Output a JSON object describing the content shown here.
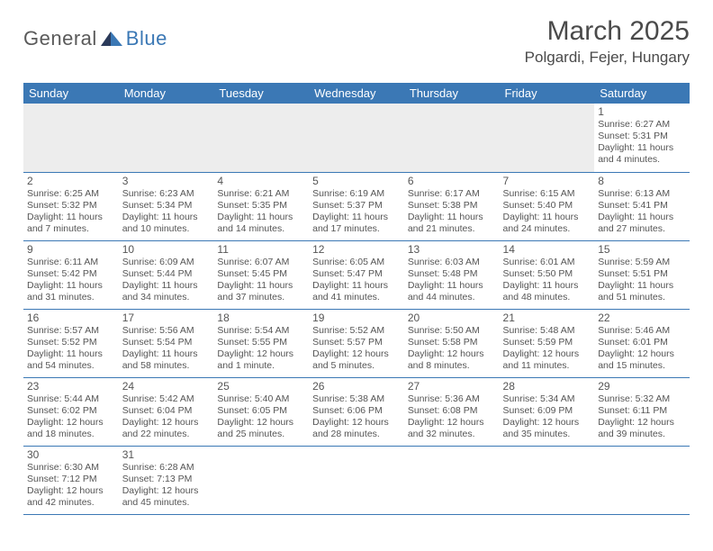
{
  "brand": {
    "part1": "General",
    "part2": "Blue"
  },
  "title": "March 2025",
  "location": "Polgardi, Fejer, Hungary",
  "colors": {
    "header_bg": "#3b78b5",
    "header_fg": "#ffffff",
    "grid_border": "#3b78b5",
    "empty_bg": "#ededed",
    "text": "#555555",
    "title_text": "#4a4a4a"
  },
  "weekdays": [
    "Sunday",
    "Monday",
    "Tuesday",
    "Wednesday",
    "Thursday",
    "Friday",
    "Saturday"
  ],
  "weeks": [
    [
      null,
      null,
      null,
      null,
      null,
      null,
      {
        "n": "1",
        "sr": "6:27 AM",
        "ss": "5:31 PM",
        "dl": "11 hours and 4 minutes."
      }
    ],
    [
      {
        "n": "2",
        "sr": "6:25 AM",
        "ss": "5:32 PM",
        "dl": "11 hours and 7 minutes."
      },
      {
        "n": "3",
        "sr": "6:23 AM",
        "ss": "5:34 PM",
        "dl": "11 hours and 10 minutes."
      },
      {
        "n": "4",
        "sr": "6:21 AM",
        "ss": "5:35 PM",
        "dl": "11 hours and 14 minutes."
      },
      {
        "n": "5",
        "sr": "6:19 AM",
        "ss": "5:37 PM",
        "dl": "11 hours and 17 minutes."
      },
      {
        "n": "6",
        "sr": "6:17 AM",
        "ss": "5:38 PM",
        "dl": "11 hours and 21 minutes."
      },
      {
        "n": "7",
        "sr": "6:15 AM",
        "ss": "5:40 PM",
        "dl": "11 hours and 24 minutes."
      },
      {
        "n": "8",
        "sr": "6:13 AM",
        "ss": "5:41 PM",
        "dl": "11 hours and 27 minutes."
      }
    ],
    [
      {
        "n": "9",
        "sr": "6:11 AM",
        "ss": "5:42 PM",
        "dl": "11 hours and 31 minutes."
      },
      {
        "n": "10",
        "sr": "6:09 AM",
        "ss": "5:44 PM",
        "dl": "11 hours and 34 minutes."
      },
      {
        "n": "11",
        "sr": "6:07 AM",
        "ss": "5:45 PM",
        "dl": "11 hours and 37 minutes."
      },
      {
        "n": "12",
        "sr": "6:05 AM",
        "ss": "5:47 PM",
        "dl": "11 hours and 41 minutes."
      },
      {
        "n": "13",
        "sr": "6:03 AM",
        "ss": "5:48 PM",
        "dl": "11 hours and 44 minutes."
      },
      {
        "n": "14",
        "sr": "6:01 AM",
        "ss": "5:50 PM",
        "dl": "11 hours and 48 minutes."
      },
      {
        "n": "15",
        "sr": "5:59 AM",
        "ss": "5:51 PM",
        "dl": "11 hours and 51 minutes."
      }
    ],
    [
      {
        "n": "16",
        "sr": "5:57 AM",
        "ss": "5:52 PM",
        "dl": "11 hours and 54 minutes."
      },
      {
        "n": "17",
        "sr": "5:56 AM",
        "ss": "5:54 PM",
        "dl": "11 hours and 58 minutes."
      },
      {
        "n": "18",
        "sr": "5:54 AM",
        "ss": "5:55 PM",
        "dl": "12 hours and 1 minute."
      },
      {
        "n": "19",
        "sr": "5:52 AM",
        "ss": "5:57 PM",
        "dl": "12 hours and 5 minutes."
      },
      {
        "n": "20",
        "sr": "5:50 AM",
        "ss": "5:58 PM",
        "dl": "12 hours and 8 minutes."
      },
      {
        "n": "21",
        "sr": "5:48 AM",
        "ss": "5:59 PM",
        "dl": "12 hours and 11 minutes."
      },
      {
        "n": "22",
        "sr": "5:46 AM",
        "ss": "6:01 PM",
        "dl": "12 hours and 15 minutes."
      }
    ],
    [
      {
        "n": "23",
        "sr": "5:44 AM",
        "ss": "6:02 PM",
        "dl": "12 hours and 18 minutes."
      },
      {
        "n": "24",
        "sr": "5:42 AM",
        "ss": "6:04 PM",
        "dl": "12 hours and 22 minutes."
      },
      {
        "n": "25",
        "sr": "5:40 AM",
        "ss": "6:05 PM",
        "dl": "12 hours and 25 minutes."
      },
      {
        "n": "26",
        "sr": "5:38 AM",
        "ss": "6:06 PM",
        "dl": "12 hours and 28 minutes."
      },
      {
        "n": "27",
        "sr": "5:36 AM",
        "ss": "6:08 PM",
        "dl": "12 hours and 32 minutes."
      },
      {
        "n": "28",
        "sr": "5:34 AM",
        "ss": "6:09 PM",
        "dl": "12 hours and 35 minutes."
      },
      {
        "n": "29",
        "sr": "5:32 AM",
        "ss": "6:11 PM",
        "dl": "12 hours and 39 minutes."
      }
    ],
    [
      {
        "n": "30",
        "sr": "6:30 AM",
        "ss": "7:12 PM",
        "dl": "12 hours and 42 minutes."
      },
      {
        "n": "31",
        "sr": "6:28 AM",
        "ss": "7:13 PM",
        "dl": "12 hours and 45 minutes."
      },
      null,
      null,
      null,
      null,
      null
    ]
  ],
  "labels": {
    "sunrise": "Sunrise:",
    "sunset": "Sunset:",
    "daylight": "Daylight:"
  }
}
